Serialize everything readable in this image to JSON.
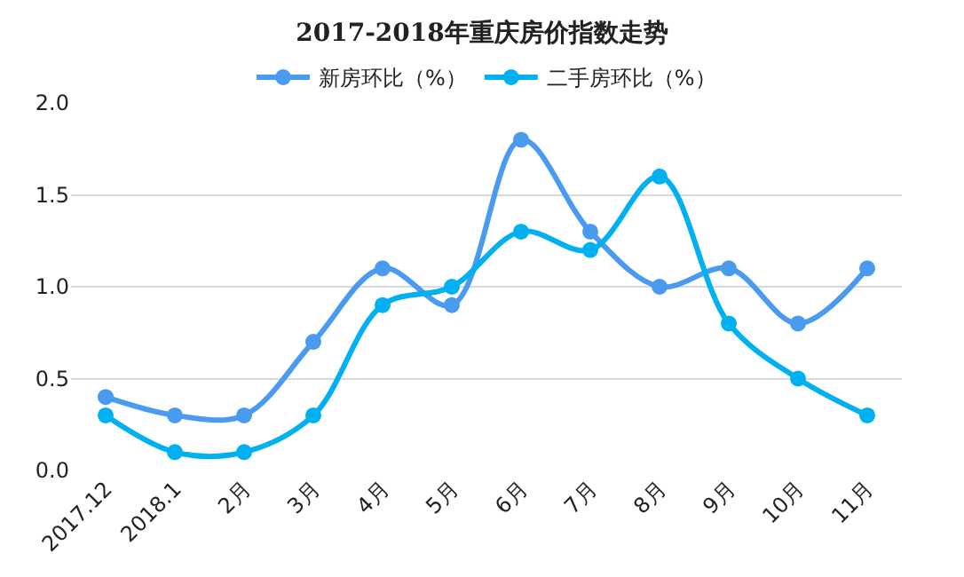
{
  "chart_data": {
    "type": "line",
    "title": "2017-2018年重庆房价指数走势",
    "categories": [
      "2017.12",
      "2018.1",
      "2月",
      "3月",
      "4月",
      "5月",
      "6月",
      "7月",
      "8月",
      "9月",
      "10月",
      "11月"
    ],
    "series": [
      {
        "name": "新房环比（%）",
        "color": "#4a9bf0",
        "values": [
          0.4,
          0.3,
          0.3,
          0.7,
          1.1,
          0.9,
          1.8,
          1.3,
          1.0,
          1.1,
          0.8,
          1.1
        ]
      },
      {
        "name": "二手房环比（%）",
        "color": "#00b0f0",
        "values": [
          0.3,
          0.1,
          0.1,
          0.3,
          0.9,
          1.0,
          1.3,
          1.2,
          1.6,
          0.8,
          0.5,
          0.3
        ]
      }
    ],
    "ylim": [
      0,
      2.0
    ],
    "yticks": [
      {
        "value": 0,
        "label": "0.0"
      },
      {
        "value": 0.5,
        "label": "0.5"
      },
      {
        "value": 1.0,
        "label": "1.0"
      },
      {
        "value": 1.5,
        "label": "1.5"
      },
      {
        "value": 2.0,
        "label": "2.0"
      }
    ],
    "grid": "y",
    "legend": "top",
    "marker": "circle",
    "line_style": "solid"
  }
}
